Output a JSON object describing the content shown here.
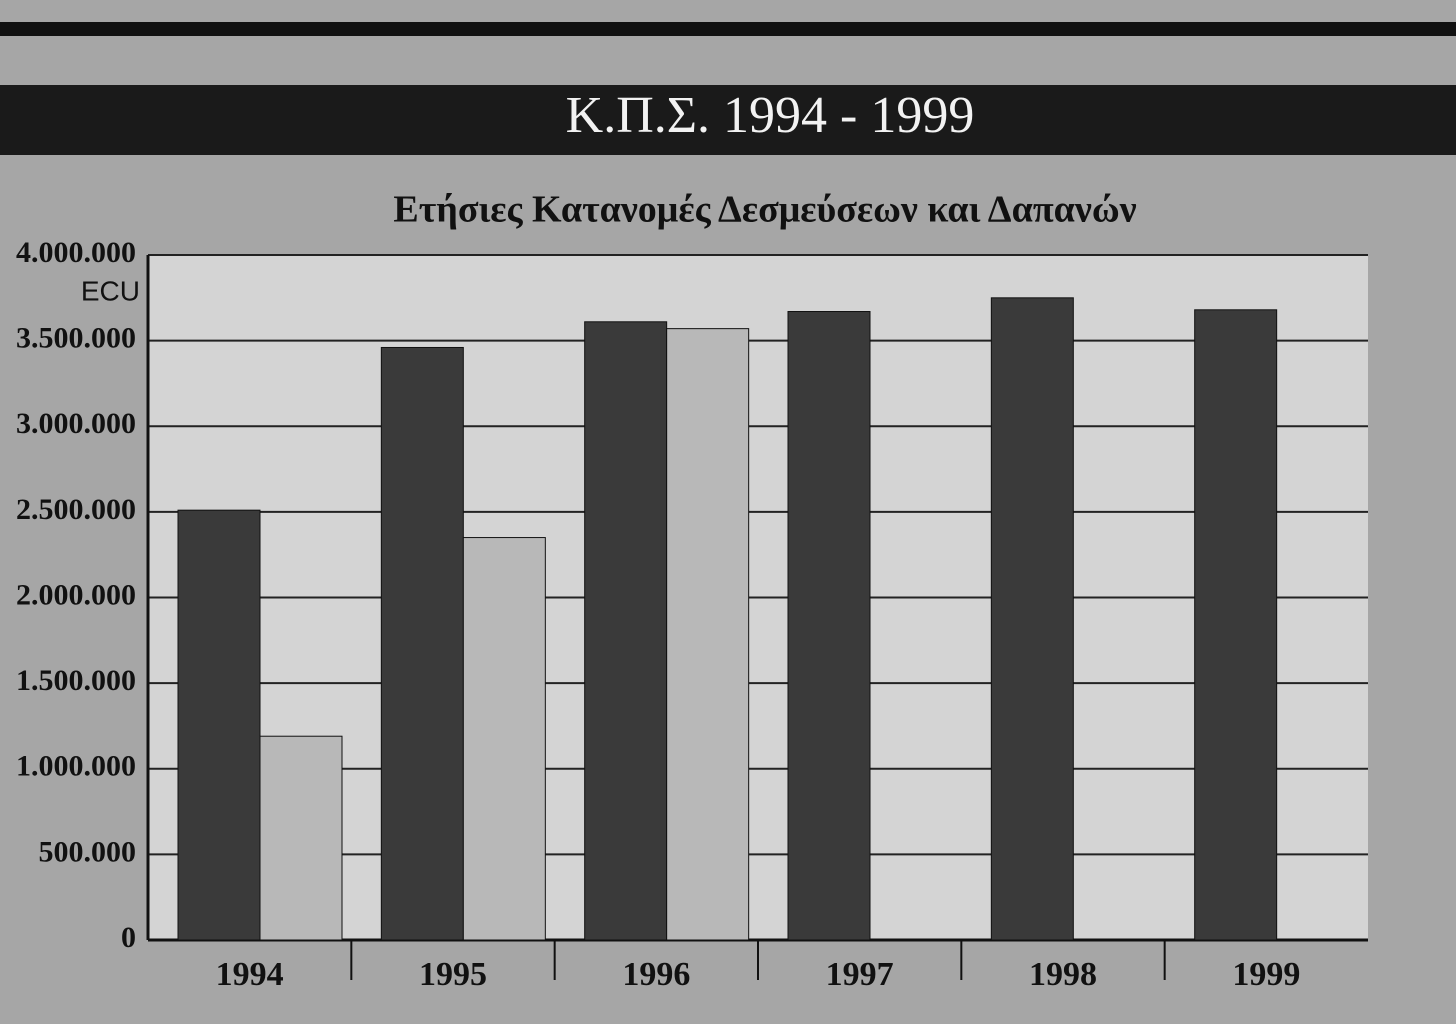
{
  "chart_data": {
    "type": "bar",
    "title": "Κ.Π.Σ. 1994 - 1999",
    "subtitle": "Ετήσιες Κατανομές Δεσμεύσεων και Δαπανών",
    "unit_label": "ECU",
    "categories": [
      "1994",
      "1995",
      "1996",
      "1997",
      "1998",
      "1999"
    ],
    "series": [
      {
        "color": "#3a3a3a",
        "values": [
          2510000,
          3460000,
          3610000,
          3670000,
          3750000,
          3680000
        ]
      },
      {
        "color": "#b8b8b8",
        "values": [
          1190000,
          2350000,
          3570000,
          null,
          null,
          null
        ]
      }
    ],
    "ylim": [
      0,
      4000000
    ],
    "yticks": [
      0,
      {
        "value": 500000,
        "label": "500.000"
      },
      {
        "value": 1000000,
        "label": "1.000.000"
      },
      {
        "value": 1500000,
        "label": "1.500.000"
      },
      {
        "value": 2000000,
        "label": "2.000.000"
      },
      {
        "value": 2500000,
        "label": "2.500.000"
      },
      {
        "value": 3000000,
        "label": "3.000.000"
      },
      {
        "value": 3500000,
        "label": "3.500.000"
      },
      {
        "value": 4000000,
        "label": "4.000.000"
      }
    ],
    "grid": true
  }
}
